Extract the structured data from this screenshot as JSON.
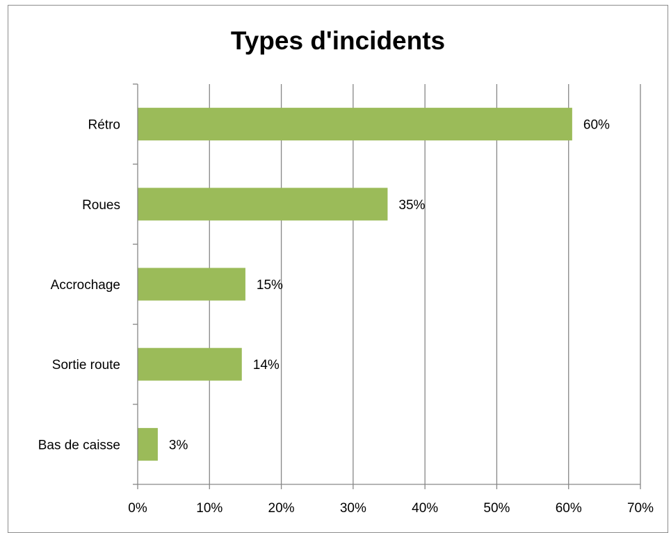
{
  "chart_data": {
    "type": "bar",
    "orientation": "horizontal",
    "title": "Types d'incidents",
    "categories": [
      "Rétro",
      "Roues",
      "Accrochage",
      "Sortie route",
      "Bas de caisse"
    ],
    "values": [
      60.5,
      34.8,
      15,
      14.5,
      2.8
    ],
    "data_labels": [
      "60%",
      "35%",
      "15%",
      "14%",
      "3%"
    ],
    "xlim": [
      0,
      70
    ],
    "x_ticks": [
      0,
      10,
      20,
      30,
      40,
      50,
      60,
      70
    ],
    "x_tick_labels": [
      "0%",
      "10%",
      "20%",
      "30%",
      "40%",
      "50%",
      "60%",
      "70%"
    ],
    "grid": "vertical",
    "legend": "none",
    "bar_color": "#9bbb59",
    "grid_color": "#868686"
  }
}
